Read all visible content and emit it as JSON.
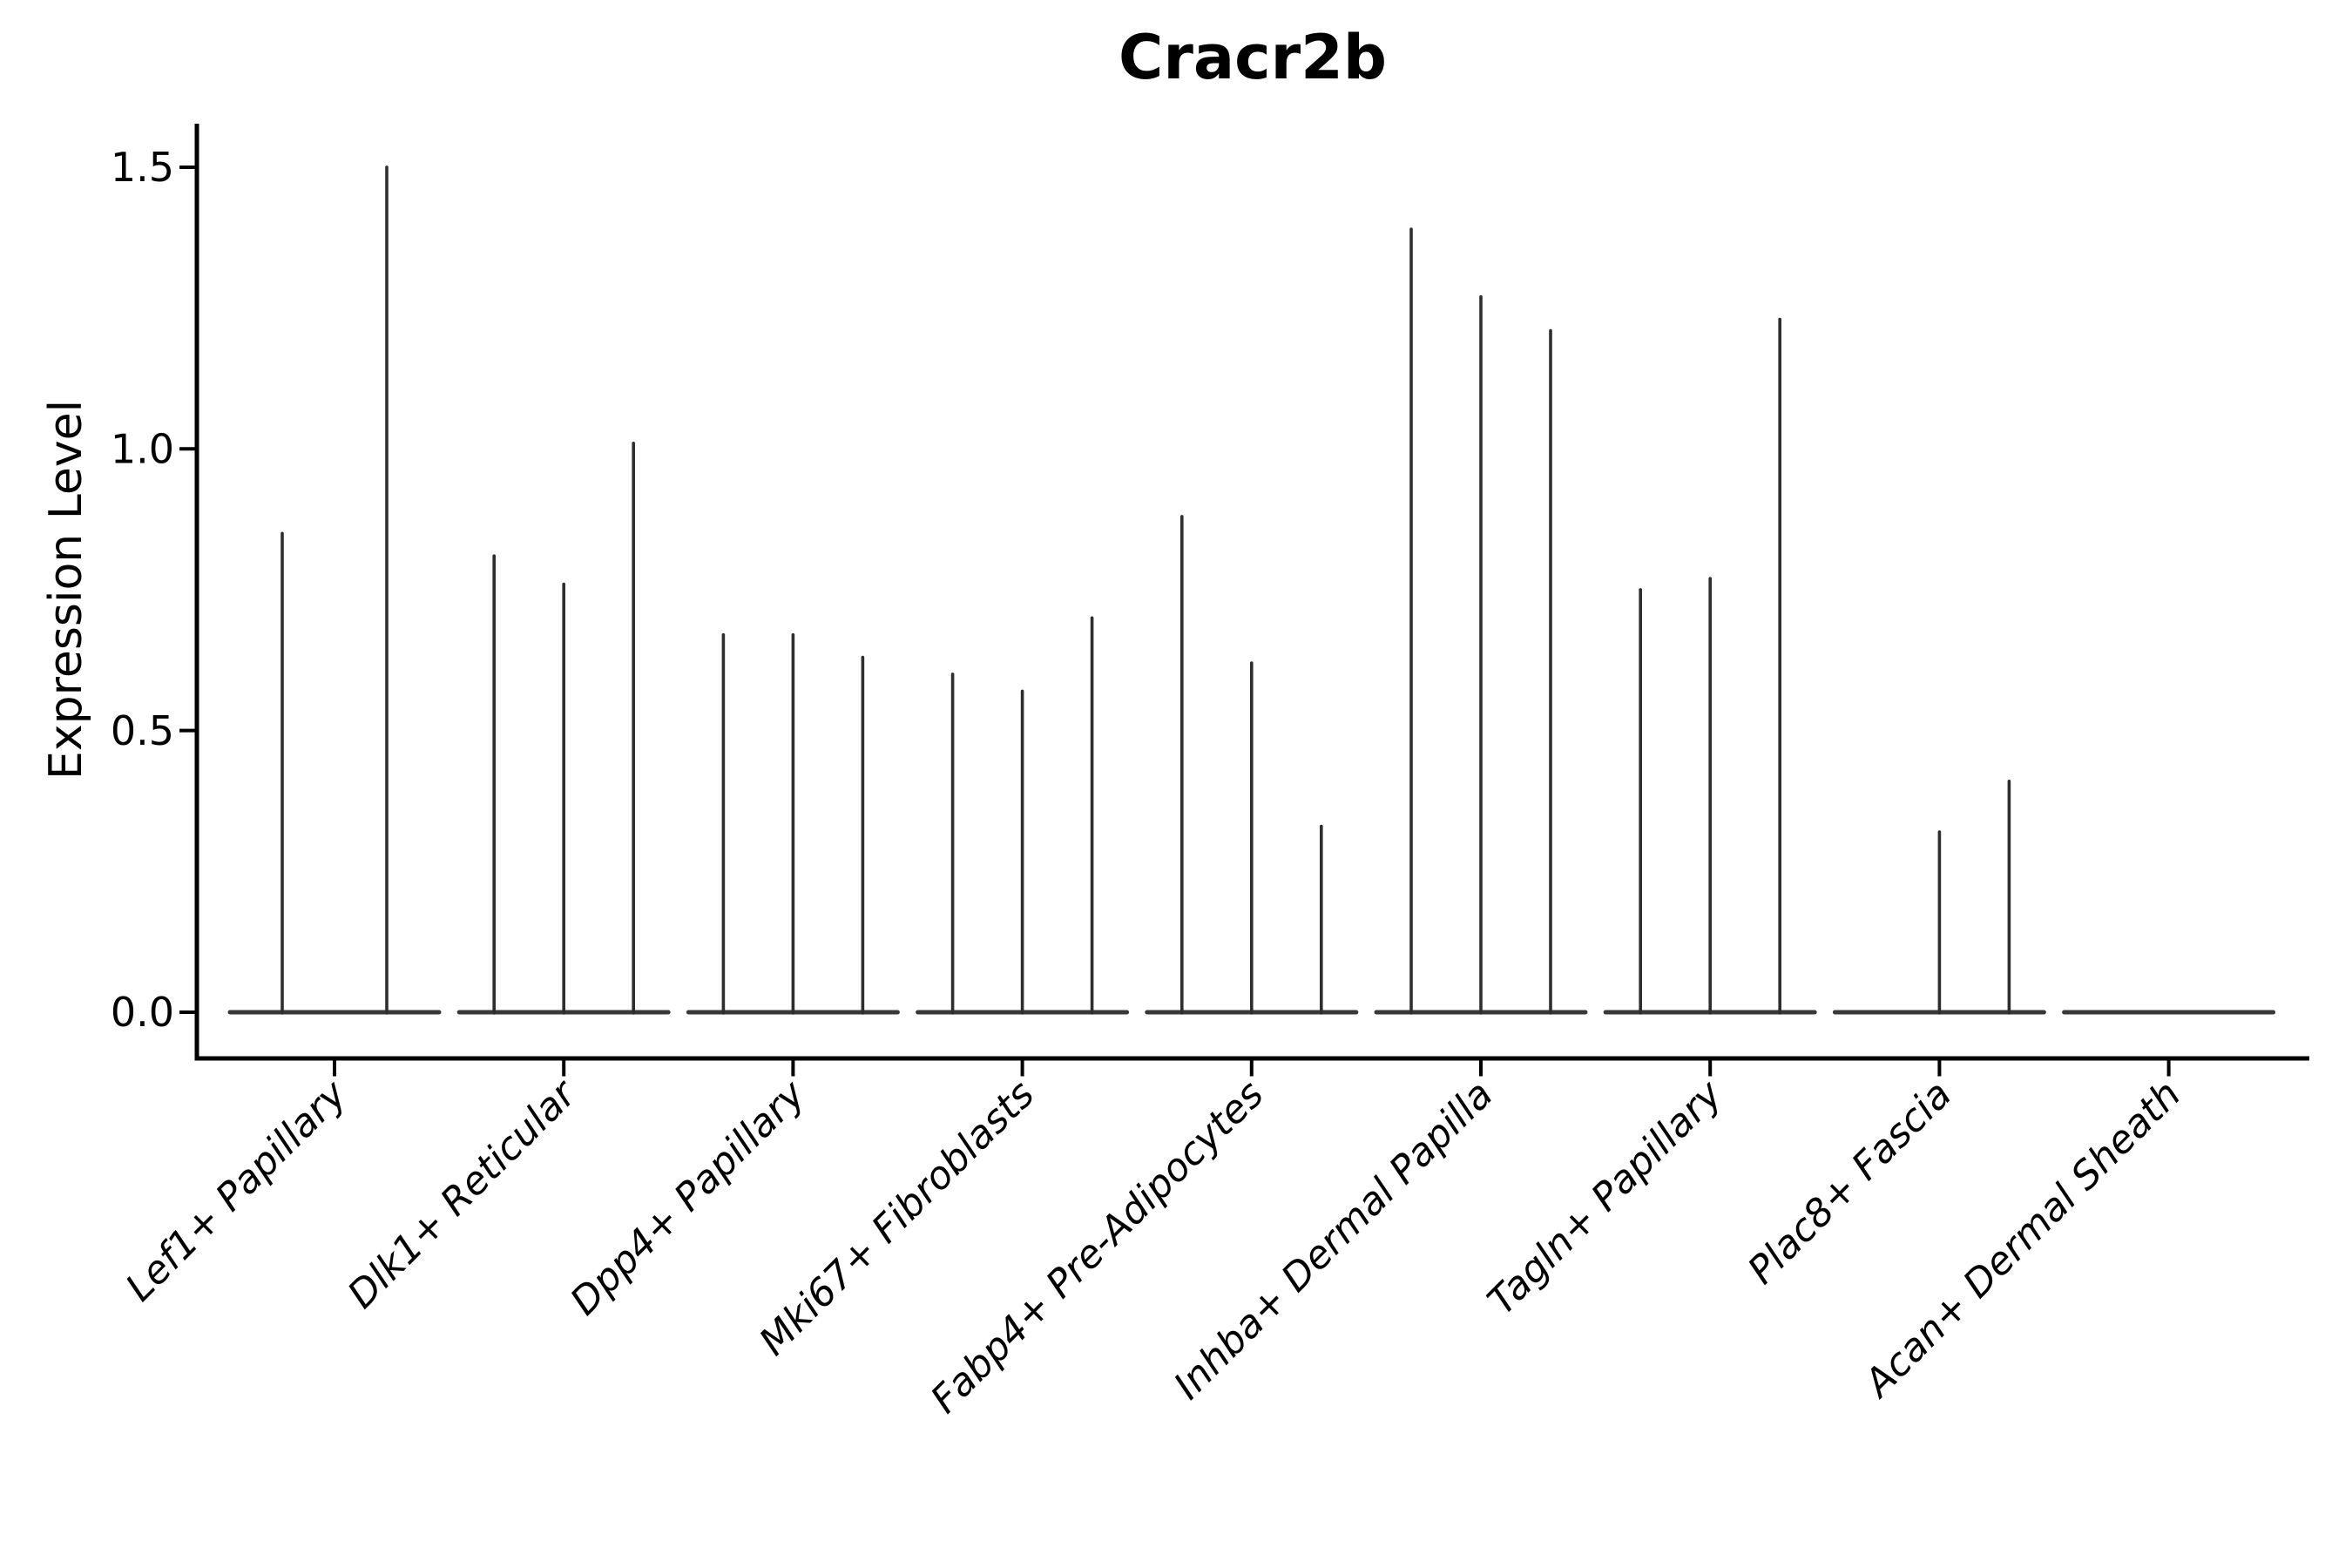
{
  "figure": {
    "background": "#ffffff",
    "axis_color": "#000000",
    "violin_stroke_color": "#2e2e2e",
    "baseline_color": "#383838"
  },
  "chart_data": {
    "type": "violin",
    "title": "Cracr2b",
    "ylabel": "Expression Level",
    "xlabel": "",
    "legend": null,
    "grid": "off",
    "ylim": [
      -0.07,
      1.58
    ],
    "ytick_labels": [
      "0.0",
      "0.5",
      "1.0",
      "1.5"
    ],
    "ytick_values": [
      0.0,
      0.5,
      1.0,
      1.5
    ],
    "categories": [
      "Lef1+ Papillary",
      "Dlk1+ Reticular",
      "Dpp4+ Papillary",
      "Mki67+ Fibroblasts",
      "Fabp4+ Pre-Adipocytes",
      "Inhba+ Dermal Papilla",
      "Tagln+ Papillary",
      "Plac8+ Fascia",
      "Acan+ Dermal Sheath"
    ],
    "groups": [
      {
        "category": "Lef1+ Papillary",
        "violins": [
          {
            "offset": -60,
            "width": 120,
            "max": 0.85
          },
          {
            "offset": 60,
            "width": 120,
            "max": 1.5
          }
        ]
      },
      {
        "category": "Dlk1+ Reticular",
        "violins": [
          {
            "offset": -80,
            "width": 80,
            "max": 0.81
          },
          {
            "offset": 0,
            "width": 80,
            "max": 0.76
          },
          {
            "offset": 80,
            "width": 80,
            "max": 1.01
          }
        ]
      },
      {
        "category": "Dpp4+ Papillary",
        "violins": [
          {
            "offset": -80,
            "width": 80,
            "max": 0.67
          },
          {
            "offset": 0,
            "width": 80,
            "max": 0.67
          },
          {
            "offset": 80,
            "width": 80,
            "max": 0.63
          }
        ]
      },
      {
        "category": "Mki67+ Fibroblasts",
        "violins": [
          {
            "offset": -80,
            "width": 80,
            "max": 0.6
          },
          {
            "offset": 0,
            "width": 80,
            "max": 0.57
          },
          {
            "offset": 80,
            "width": 80,
            "max": 0.7
          }
        ]
      },
      {
        "category": "Fabp4+ Pre-Adipocytes",
        "violins": [
          {
            "offset": -80,
            "width": 80,
            "max": 0.88
          },
          {
            "offset": 0,
            "width": 80,
            "max": 0.62
          },
          {
            "offset": 80,
            "width": 80,
            "max": 0.33
          }
        ]
      },
      {
        "category": "Inhba+ Dermal Papilla",
        "violins": [
          {
            "offset": -80,
            "width": 80,
            "max": 1.39
          },
          {
            "offset": 0,
            "width": 80,
            "max": 1.27
          },
          {
            "offset": 80,
            "width": 80,
            "max": 1.21
          }
        ]
      },
      {
        "category": "Tagln+ Papillary",
        "violins": [
          {
            "offset": -80,
            "width": 80,
            "max": 0.75
          },
          {
            "offset": 0,
            "width": 80,
            "max": 0.77
          },
          {
            "offset": 80,
            "width": 80,
            "max": 1.23
          }
        ]
      },
      {
        "category": "Plac8+ Fascia",
        "violins": [
          {
            "offset": -80,
            "width": 80,
            "max": 0
          },
          {
            "offset": 0,
            "width": 80,
            "max": 0.32
          },
          {
            "offset": 80,
            "width": 80,
            "max": 0.41
          }
        ]
      },
      {
        "category": "Acan+ Dermal Sheath",
        "violins": [
          {
            "offset": -80,
            "width": 80,
            "max": 0
          },
          {
            "offset": 0,
            "width": 80,
            "max": 0
          },
          {
            "offset": 80,
            "width": 80,
            "max": 0
          }
        ]
      }
    ]
  }
}
